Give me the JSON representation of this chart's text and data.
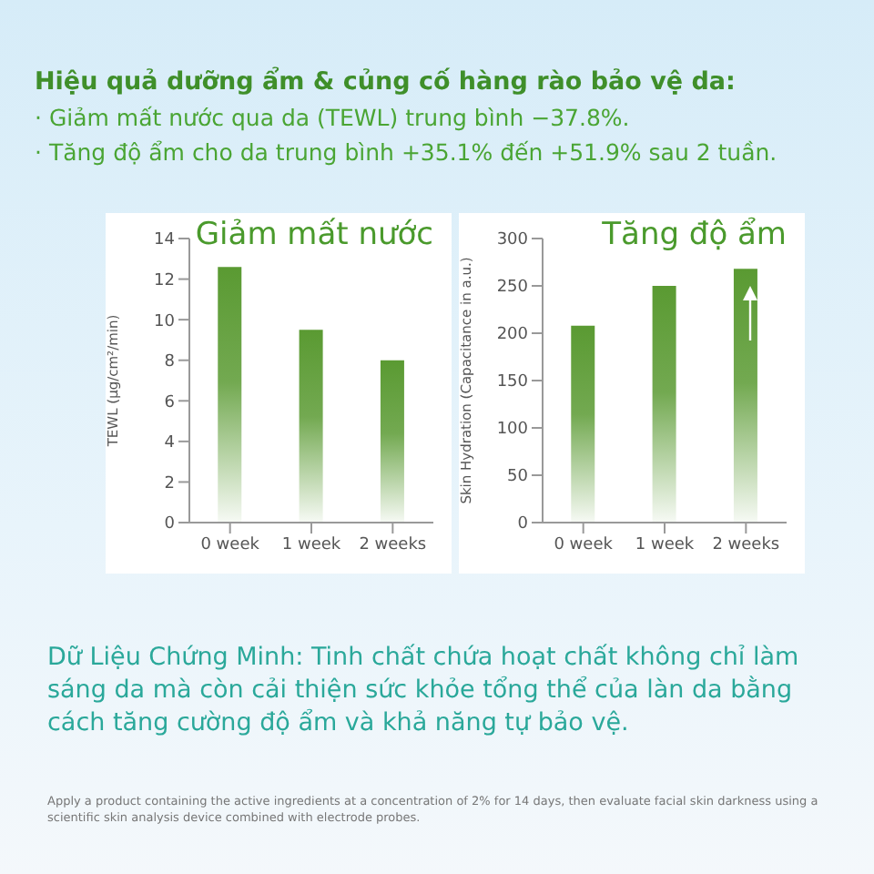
{
  "chart_data": [
    {
      "type": "bar",
      "title": "Giảm mất nước",
      "categories": [
        "0 week",
        "1 week",
        "2 weeks"
      ],
      "values": [
        12.6,
        9.5,
        8.0
      ],
      "color": "#5a9a32",
      "ylim": [
        0,
        14
      ],
      "yticks": [
        0,
        2,
        4,
        6,
        8,
        10,
        12,
        14
      ],
      "ylabel": "TEWL (μg/cm²/min)",
      "grid": false,
      "legend": false,
      "annotations": [
        "Hiệu quả dưỡng ẩm & củng cố hàng rào bảo vệ da:",
        "· Giảm mất nước qua da (TEWL) trung bình −37.8%.",
        "· Tăng độ ẩm cho da trung bình +35.1% đến +51.9% sau 2 tuần."
      ]
    },
    {
      "type": "bar",
      "title": "Tăng độ ẩm",
      "categories": [
        "0 week",
        "1 week",
        "2 weeks"
      ],
      "values": [
        208,
        250,
        268
      ],
      "color": "#5a9a32",
      "ylim": [
        0,
        300
      ],
      "yticks": [
        0,
        50,
        100,
        150,
        200,
        250,
        300
      ],
      "ylabel": "Skin Hydration (Capacitance in a.u.)",
      "grid": false,
      "legend": false,
      "annotations": [
        "Dữ Liệu Chứng Minh: Tinh chất chứa hoạt chất không chỉ làm sáng da mà còn cải thiện sức khỏe tổng thể của làn da bằng cách tăng cường độ ẩm và khả năng tự bảo vệ.",
        "Apply a product containing the active ingredients at a concentration of 2% for 14 days, then evaluate facial skin darkness using a scientific skin analysis device combined with electrode probes."
      ]
    }
  ]
}
